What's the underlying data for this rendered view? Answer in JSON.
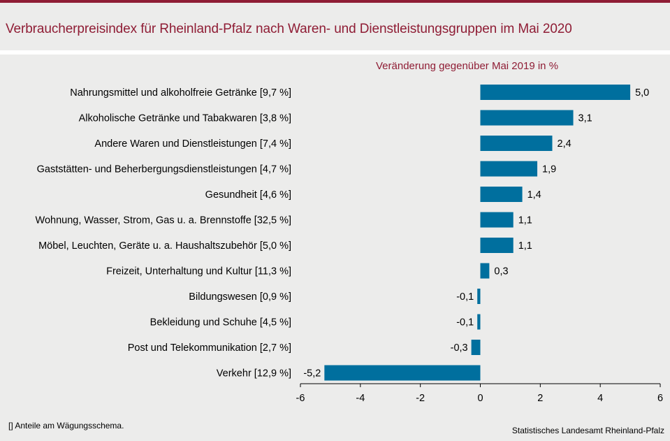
{
  "header": {
    "title": "Verbraucherpreisindex für Rheinland-Pfalz nach Waren- und Dienstleistungsgruppen im Mai 2020",
    "subtitle": "Veränderung  gegenüber Mai 2019 in %"
  },
  "footer": {
    "footnote": "[] Anteile  am Wägungsschema.",
    "source": "Statistisches Landesamt  Rheinland-Pfalz"
  },
  "colors": {
    "bar": "#006f9e",
    "accent": "#8f1d35",
    "background": "#ececeb"
  },
  "chart_data": {
    "type": "bar",
    "orientation": "horizontal",
    "title": "Verbraucherpreisindex für Rheinland-Pfalz nach Waren- und Dienstleistungsgruppen im Mai 2020",
    "subtitle": "Veränderung  gegenüber Mai 2019 in %",
    "categories": [
      "Nahrungsmittel und alkoholfreie Getränke [9,7 %]",
      "Alkoholische Getränke und Tabakwaren [3,8 %]",
      "Andere Waren und Dienstleistungen [7,4 %]",
      "Gaststätten- und Beherbergungsdienstleistungen [4,7 %]",
      "Gesundheit [4,6 %]",
      "Wohnung, Wasser, Strom, Gas u. a. Brennstoffe [32,5 %]",
      "Möbel, Leuchten, Geräte u. a. Haushaltszubehör  [5,0 %]",
      "Freizeit, Unterhaltung und Kultur [11,3 %]",
      "Bildungswesen [0,9 %]",
      "Bekleidung und Schuhe [4,5 %]",
      "Post und Telekommunikation [2,7 %]",
      "Verkehr [12,9 %]"
    ],
    "values": [
      5.0,
      3.1,
      2.4,
      1.9,
      1.4,
      1.1,
      1.1,
      0.3,
      -0.1,
      -0.1,
      -0.3,
      -5.2
    ],
    "value_labels": [
      "5,0",
      "3,1",
      "2,4",
      "1,9",
      "1,4",
      "1,1",
      "1,1",
      "0,3",
      "-0,1",
      "-0,1",
      "-0,3",
      "-5,2"
    ],
    "xlim": [
      -6,
      6
    ],
    "xticks": [
      -6,
      -4,
      -2,
      0,
      2,
      4,
      6
    ],
    "xtick_labels": [
      "-6",
      "-4",
      "-2",
      "0",
      "2",
      "4",
      "6"
    ],
    "xlabel": "",
    "ylabel": "",
    "grid": false,
    "legend": "none"
  }
}
